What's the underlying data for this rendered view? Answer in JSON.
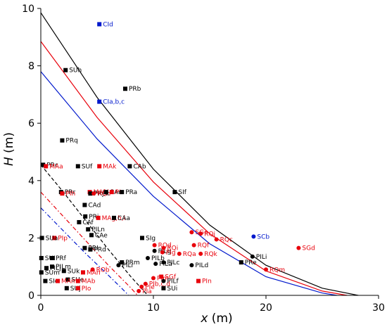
{
  "chart_data": {
    "type": "scatter",
    "title": "",
    "xlabel": "x (m)",
    "ylabel": "H (m)",
    "xlabel_var": "x",
    "xlabel_unit": " (m)",
    "ylabel_var": "H",
    "ylabel_unit": " (m)",
    "xlim": [
      0,
      30
    ],
    "ylim": [
      0,
      10
    ],
    "xticks": [
      0,
      10,
      20,
      30
    ],
    "yticks": [
      0,
      2,
      4,
      6,
      8,
      10
    ],
    "grid": false,
    "colors": {
      "black": "#000000",
      "red": "#e8000b",
      "blue": "#0018cc"
    },
    "curves": [
      {
        "color": "black",
        "style": "solid",
        "points": [
          [
            0,
            9.85
          ],
          [
            5,
            6.9
          ],
          [
            10,
            4.4
          ],
          [
            15,
            2.45
          ],
          [
            20,
            1.05
          ],
          [
            25,
            0.25
          ],
          [
            28.2,
            0
          ]
        ]
      },
      {
        "color": "red",
        "style": "solid",
        "points": [
          [
            0,
            8.85
          ],
          [
            5,
            6.2
          ],
          [
            10,
            3.95
          ],
          [
            15,
            2.15
          ],
          [
            20,
            0.85
          ],
          [
            25,
            0.15
          ],
          [
            27.2,
            0
          ]
        ]
      },
      {
        "color": "blue",
        "style": "solid",
        "points": [
          [
            0,
            7.8
          ],
          [
            5,
            5.45
          ],
          [
            10,
            3.45
          ],
          [
            15,
            1.8
          ],
          [
            20,
            0.65
          ],
          [
            25,
            0.08
          ],
          [
            26.3,
            0
          ]
        ]
      },
      {
        "color": "black",
        "style": "dashed",
        "points": [
          [
            0,
            4.55
          ],
          [
            2,
            3.6
          ],
          [
            4,
            2.6
          ],
          [
            6,
            1.6
          ],
          [
            8,
            0.65
          ],
          [
            9.5,
            0
          ]
        ]
      },
      {
        "color": "red",
        "style": "dashdot",
        "points": [
          [
            0,
            3.6
          ],
          [
            2,
            2.75
          ],
          [
            4,
            1.9
          ],
          [
            6,
            1.05
          ],
          [
            7.9,
            0.3
          ],
          [
            8.6,
            0
          ]
        ]
      },
      {
        "color": "blue",
        "style": "dashdot",
        "points": [
          [
            0,
            3.05
          ],
          [
            2,
            2.25
          ],
          [
            4,
            1.45
          ],
          [
            6,
            0.7
          ],
          [
            7.3,
            0.2
          ],
          [
            7.8,
            0
          ]
        ]
      }
    ],
    "points": [
      {
        "label": "CId",
        "x": 5.2,
        "y": 9.45,
        "color": "blue",
        "marker": "square"
      },
      {
        "label": "SUh",
        "x": 2.2,
        "y": 7.85,
        "color": "black",
        "marker": "square"
      },
      {
        "label": "PRb",
        "x": 7.5,
        "y": 7.2,
        "color": "black",
        "marker": "square"
      },
      {
        "label": "CIa,b,c",
        "x": 5.2,
        "y": 6.75,
        "color": "blue",
        "marker": "square"
      },
      {
        "label": "PRq",
        "x": 1.9,
        "y": 5.4,
        "color": "black",
        "marker": "square"
      },
      {
        "label": "PRc",
        "x": 0.2,
        "y": 4.55,
        "color": "black",
        "marker": "square"
      },
      {
        "label": "MAa",
        "x": 0.45,
        "y": 4.5,
        "color": "red",
        "marker": "square"
      },
      {
        "label": "SUf",
        "x": 3.3,
        "y": 4.5,
        "color": "black",
        "marker": "square"
      },
      {
        "label": "MAk",
        "x": 5.2,
        "y": 4.5,
        "color": "red",
        "marker": "square"
      },
      {
        "label": "CAb",
        "x": 7.9,
        "y": 4.5,
        "color": "black",
        "marker": "square"
      },
      {
        "label": "SIf",
        "x": 11.9,
        "y": 3.6,
        "color": "black",
        "marker": "square"
      },
      {
        "label": "PRr",
        "x": 1.8,
        "y": 3.6,
        "color": "black",
        "marker": "square"
      },
      {
        "label": "PIh",
        "x": 1.9,
        "y": 3.55,
        "color": "red",
        "marker": "square"
      },
      {
        "label": "MAf,i,l",
        "x": 4.35,
        "y": 3.6,
        "color": "red",
        "marker": "square"
      },
      {
        "label": "PRj,k",
        "x": 4.4,
        "y": 3.55,
        "color": "black",
        "marker": "square"
      },
      {
        "label": "RQn",
        "x": 4.7,
        "y": 3.55,
        "color": "red",
        "marker": "circle"
      },
      {
        "label": "CAc",
        "x": 5.8,
        "y": 3.6,
        "color": "black",
        "marker": "square"
      },
      {
        "label": "PIr",
        "x": 6.3,
        "y": 3.6,
        "color": "red",
        "marker": "square"
      },
      {
        "label": "PRa",
        "x": 7.2,
        "y": 3.6,
        "color": "black",
        "marker": "square"
      },
      {
        "label": "CAd",
        "x": 3.9,
        "y": 3.15,
        "color": "black",
        "marker": "square"
      },
      {
        "label": "PRi",
        "x": 3.95,
        "y": 2.75,
        "color": "black",
        "marker": "square"
      },
      {
        "label": "MAg,h,i",
        "x": 5.1,
        "y": 2.7,
        "color": "red",
        "marker": "square"
      },
      {
        "label": "CAf",
        "x": 3.4,
        "y": 2.55,
        "color": "black",
        "marker": "square"
      },
      {
        "label": "CAa",
        "x": 6.5,
        "y": 2.7,
        "color": "black",
        "marker": "square"
      },
      {
        "label": "PILn",
        "x": 4.2,
        "y": 2.3,
        "color": "black",
        "marker": "square"
      },
      {
        "label": "CAe",
        "x": 4.5,
        "y": 2.1,
        "color": "black",
        "marker": "square"
      },
      {
        "label": "SIg",
        "x": 9.0,
        "y": 2.0,
        "color": "black",
        "marker": "square"
      },
      {
        "label": "PIp",
        "x": 1.2,
        "y": 2.0,
        "color": "red",
        "marker": "square"
      },
      {
        "label": "SUa",
        "x": 0.1,
        "y": 2.0,
        "color": "black",
        "marker": "square"
      },
      {
        "label": "PRI",
        "x": 3.9,
        "y": 1.65,
        "color": "black",
        "marker": "square"
      },
      {
        "label": "PRd",
        "x": 4.4,
        "y": 1.6,
        "color": "black",
        "marker": "square"
      },
      {
        "label": "PRf",
        "x": 1.0,
        "y": 1.3,
        "color": "black",
        "marker": "square"
      },
      {
        "label": "SUI",
        "x": 0.05,
        "y": 1.3,
        "color": "black",
        "marker": "square"
      },
      {
        "label": "PRm",
        "x": 7.2,
        "y": 1.15,
        "color": "black",
        "marker": "square"
      },
      {
        "label": "PILm",
        "x": 1.0,
        "y": 1.0,
        "color": "black",
        "marker": "square"
      },
      {
        "label": "PILi",
        "x": 6.9,
        "y": 1.05,
        "color": "black",
        "marker": "circle"
      },
      {
        "label": "PILj",
        "x": 0.5,
        "y": 0.95,
        "color": "black",
        "marker": "square"
      },
      {
        "label": "SUk",
        "x": 2.05,
        "y": 0.85,
        "color": "black",
        "marker": "square"
      },
      {
        "label": "MAn",
        "x": 3.75,
        "y": 0.8,
        "color": "red",
        "marker": "square"
      },
      {
        "label": "ROb",
        "x": 4.6,
        "y": 0.9,
        "color": "red",
        "marker": "circle"
      },
      {
        "label": "SUm",
        "x": 0.05,
        "y": 0.8,
        "color": "black",
        "marker": "square"
      },
      {
        "label": "SUe",
        "x": 2.4,
        "y": 0.55,
        "color": "black",
        "marker": "square"
      },
      {
        "label": "SIc",
        "x": 0.4,
        "y": 0.5,
        "color": "black",
        "marker": "square"
      },
      {
        "label": "MAm",
        "x": 1.5,
        "y": 0.5,
        "color": "red",
        "marker": "square"
      },
      {
        "label": "MAb",
        "x": 3.3,
        "y": 0.5,
        "color": "red",
        "marker": "square"
      },
      {
        "label": "SUj",
        "x": 2.3,
        "y": 0.25,
        "color": "black",
        "marker": "square"
      },
      {
        "label": "PIo",
        "x": 3.3,
        "y": 0.25,
        "color": "red",
        "marker": "square"
      },
      {
        "label": "RQd",
        "x": 10.1,
        "y": 1.75,
        "color": "red",
        "marker": "circle"
      },
      {
        "label": "PILg",
        "x": 10.1,
        "y": 1.55,
        "color": "black",
        "marker": "circle"
      },
      {
        "label": "RQi",
        "x": 10.9,
        "y": 1.65,
        "color": "red",
        "marker": "circle"
      },
      {
        "label": "PIg",
        "x": 10.8,
        "y": 1.5,
        "color": "red",
        "marker": "circle"
      },
      {
        "label": "PILb",
        "x": 9.5,
        "y": 1.3,
        "color": "black",
        "marker": "circle"
      },
      {
        "label": "PILa",
        "x": 10.2,
        "y": 1.1,
        "color": "black",
        "marker": "circle"
      },
      {
        "label": "PILc",
        "x": 10.9,
        "y": 1.15,
        "color": "black",
        "marker": "circle"
      },
      {
        "label": "RQa",
        "x": 12.3,
        "y": 1.45,
        "color": "red",
        "marker": "circle"
      },
      {
        "label": "RQf",
        "x": 13.6,
        "y": 1.75,
        "color": "red",
        "marker": "circle"
      },
      {
        "label": "SGe",
        "x": 13.4,
        "y": 2.2,
        "color": "red",
        "marker": "circle"
      },
      {
        "label": "RQj",
        "x": 14.2,
        "y": 2.15,
        "color": "red",
        "marker": "circle"
      },
      {
        "label": "RQc",
        "x": 15.6,
        "y": 1.95,
        "color": "red",
        "marker": "circle"
      },
      {
        "label": "RQk",
        "x": 14.2,
        "y": 1.45,
        "color": "red",
        "marker": "circle"
      },
      {
        "label": "PILd",
        "x": 13.4,
        "y": 1.05,
        "color": "black",
        "marker": "circle"
      },
      {
        "label": "PIm",
        "x": 10.0,
        "y": 0.6,
        "color": "red",
        "marker": "circle"
      },
      {
        "label": "SGf",
        "x": 10.7,
        "y": 0.65,
        "color": "red",
        "marker": "square"
      },
      {
        "label": "PIb,c,d",
        "x": 9.3,
        "y": 0.4,
        "color": "red",
        "marker": "circle"
      },
      {
        "label": "PIe",
        "x": 8.95,
        "y": 0.3,
        "color": "red",
        "marker": "circle"
      },
      {
        "label": "PIa",
        "x": 8.7,
        "y": 0.15,
        "color": "red",
        "marker": "circle"
      },
      {
        "label": "PILf",
        "x": 10.9,
        "y": 0.5,
        "color": "black",
        "marker": "circle"
      },
      {
        "label": "SUi",
        "x": 10.9,
        "y": 0.25,
        "color": "black",
        "marker": "square"
      },
      {
        "label": "PIn",
        "x": 14.0,
        "y": 0.5,
        "color": "red",
        "marker": "square"
      },
      {
        "label": "PRe",
        "x": 17.8,
        "y": 1.15,
        "color": "black",
        "marker": "square"
      },
      {
        "label": "SCb",
        "x": 18.9,
        "y": 2.05,
        "color": "blue",
        "marker": "circle"
      },
      {
        "label": "PILi",
        "x": 18.8,
        "y": 1.35,
        "color": "black",
        "marker": "circle"
      },
      {
        "label": "RQm",
        "x": 20.0,
        "y": 0.9,
        "color": "red",
        "marker": "circle"
      },
      {
        "label": "SGd",
        "x": 22.9,
        "y": 1.65,
        "color": "red",
        "marker": "circle"
      }
    ]
  }
}
